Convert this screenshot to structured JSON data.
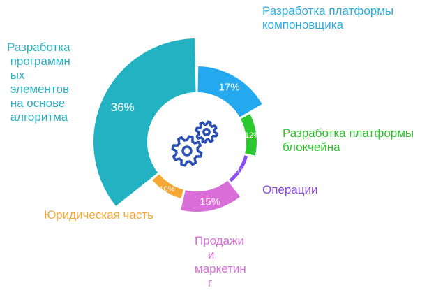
{
  "chart_data": {
    "type": "pie",
    "style": "donut",
    "title": "",
    "categories": [
      "Разработка программных элементов на основе алгоритма",
      "Разработка платформы компоновщика",
      "Разработка платформы блокчейна",
      "Операции",
      "Продажи и маркетинг",
      "Юридическая часть"
    ],
    "values": [
      36,
      17,
      12,
      10,
      15,
      10
    ],
    "value_labels": [
      "36%",
      "17%",
      "12%",
      "10%",
      "15%",
      "10%"
    ],
    "colors": [
      "#22b2c2",
      "#24a9ef",
      "#2bc92f",
      "#8c4df2",
      "#d96ed9",
      "#f5a935"
    ],
    "center_icon": "gears-icon"
  },
  "labels": {
    "slice1": "Разработка\n программн\n ых\n элементов\n на основе\n алгоритма",
    "slice2": "Разработка платформы\nкомпоновщика",
    "slice3": "Разработка платформы\nблокчейна",
    "slice4": "Операции",
    "slice5": "Продажи\n    и\nмаркетин\n    г",
    "slice6": "Юридическая часть"
  }
}
